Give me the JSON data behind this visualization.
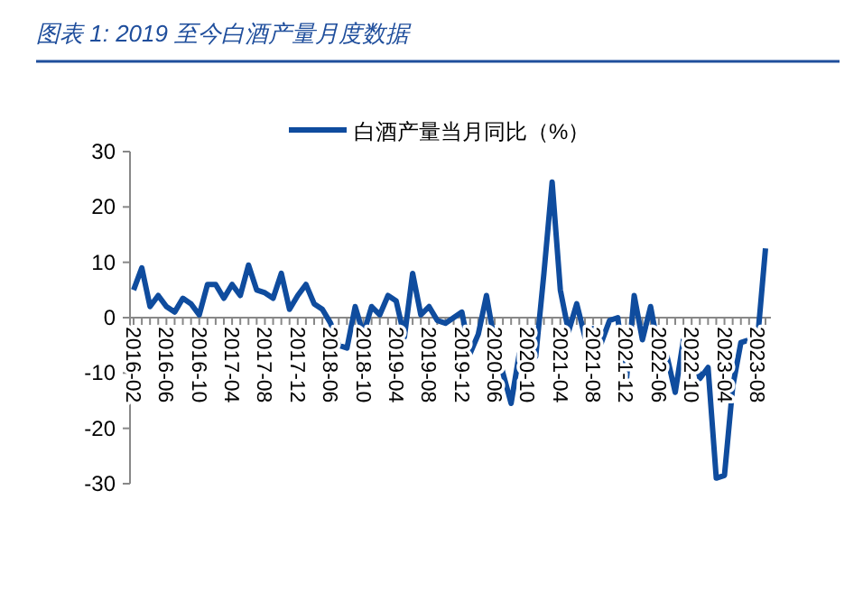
{
  "chart_data": {
    "type": "line",
    "title": "图表 1: 2019 至今白酒产量月度数据",
    "categories": [
      "2016-02",
      null,
      null,
      null,
      "2016-06",
      null,
      null,
      null,
      "2016-10",
      null,
      null,
      null,
      "2017-04",
      null,
      null,
      null,
      "2017-08",
      null,
      null,
      null,
      "2017-12",
      null,
      null,
      null,
      "2018-06",
      null,
      null,
      null,
      "2018-10",
      null,
      null,
      null,
      "2019-04",
      null,
      null,
      null,
      "2019-08",
      null,
      null,
      null,
      "2019-12",
      null,
      null,
      null,
      "2020-06",
      null,
      null,
      null,
      "2020-10",
      null,
      null,
      null,
      "2021-04",
      null,
      null,
      null,
      "2021-08",
      null,
      null,
      null,
      "2021-12",
      null,
      null,
      null,
      "2022-06",
      null,
      null,
      null,
      "2022-10",
      null,
      null,
      null,
      "2023-04",
      null,
      null,
      null,
      "2023-08",
      null
    ],
    "series": [
      {
        "name": "白酒产量当月同比（%）",
        "color": "#0f4c9e",
        "values": [
          5,
          9,
          2,
          4,
          2,
          1,
          3.5,
          2.5,
          0.5,
          6,
          6,
          3.5,
          6,
          4,
          9.5,
          5,
          4.5,
          3.5,
          8,
          1.5,
          4,
          6,
          2.5,
          1.5,
          -1,
          -5,
          -5.5,
          2,
          -3,
          2,
          0.5,
          4,
          3,
          -3.5,
          8,
          0.5,
          2,
          -0.5,
          -1,
          0,
          1,
          -6.5,
          -3,
          4,
          -4.5,
          -10,
          -15.5,
          -6.5,
          -8,
          -7,
          8,
          24.5,
          5,
          -2.5,
          2.5,
          -3.5,
          -2,
          -4.5,
          -0.5,
          0,
          -12,
          4,
          -4,
          2,
          -6,
          -7,
          -13.5,
          -4,
          -3.5,
          -11,
          -9,
          -29,
          -28.5,
          -12.5,
          -4.5,
          -4,
          -4.5,
          12.5
        ]
      }
    ],
    "ylim": [
      -30,
      30
    ],
    "yticks": [
      -30,
      -20,
      -10,
      0,
      10,
      20,
      30
    ],
    "grid": false,
    "legend": "top"
  }
}
